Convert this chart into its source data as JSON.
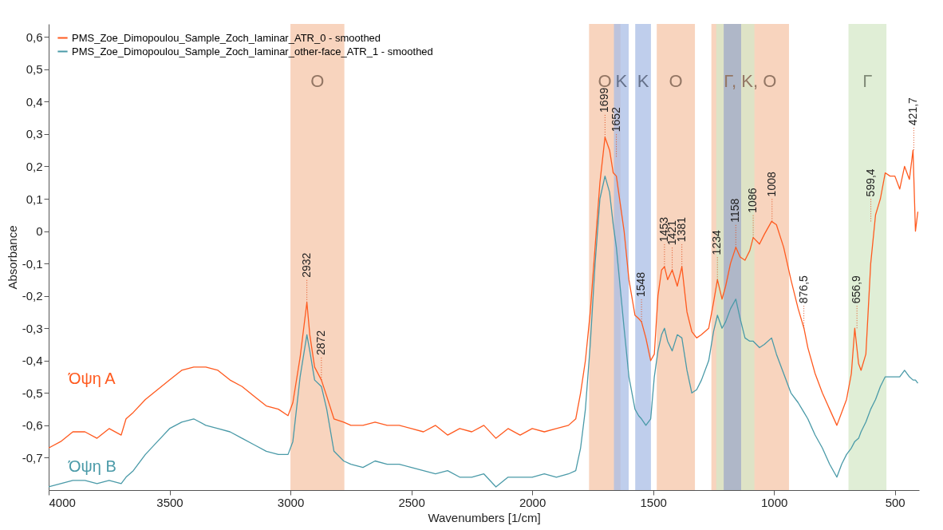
{
  "chart_data": {
    "type": "line",
    "xlabel": "Wavenumbers [1/cm]",
    "ylabel": "Absorbance",
    "xlim": [
      4000,
      400
    ],
    "xticks": [
      4000,
      3500,
      3000,
      2500,
      2000,
      1500,
      1000,
      500
    ],
    "ylim": [
      -0.8,
      0.64
    ],
    "yticks": [
      {
        "value": -0.7,
        "label": "-0,7"
      },
      {
        "value": -0.6,
        "label": "-0,6"
      },
      {
        "value": -0.5,
        "label": "-0,5"
      },
      {
        "value": -0.4,
        "label": "-0,4"
      },
      {
        "value": -0.3,
        "label": "-0,3"
      },
      {
        "value": -0.2,
        "label": "-0,2"
      },
      {
        "value": -0.1,
        "label": "-0,1"
      },
      0,
      {
        "value": 0.1,
        "label": "0,1"
      },
      {
        "value": 0.2,
        "label": "0,2"
      },
      {
        "value": 0.3,
        "label": "0,3"
      },
      {
        "value": 0.4,
        "label": "0,4"
      },
      {
        "value": 0.5,
        "label": "0,5"
      },
      {
        "value": 0.6,
        "label": "0,6"
      }
    ],
    "grid": false,
    "legend": "top left",
    "marker": "none",
    "line_style": "solid",
    "x": [
      4000,
      3950,
      3900,
      3850,
      3800,
      3750,
      3700,
      3680,
      3650,
      3600,
      3550,
      3500,
      3450,
      3400,
      3350,
      3300,
      3250,
      3200,
      3150,
      3100,
      3050,
      3010,
      2990,
      2960,
      2932,
      2920,
      2900,
      2872,
      2850,
      2820,
      2780,
      2750,
      2700,
      2650,
      2600,
      2550,
      2500,
      2450,
      2400,
      2350,
      2300,
      2250,
      2200,
      2150,
      2100,
      2050,
      2000,
      1950,
      1900,
      1850,
      1820,
      1800,
      1780,
      1760,
      1740,
      1720,
      1699,
      1680,
      1665,
      1652,
      1620,
      1600,
      1575,
      1560,
      1548,
      1530,
      1510,
      1495,
      1480,
      1465,
      1453,
      1440,
      1421,
      1400,
      1381,
      1360,
      1340,
      1320,
      1300,
      1270,
      1250,
      1234,
      1215,
      1200,
      1180,
      1158,
      1140,
      1120,
      1100,
      1086,
      1060,
      1040,
      1010,
      990,
      960,
      930,
      900,
      876,
      860,
      830,
      800,
      770,
      740,
      720,
      700,
      680,
      666,
      650,
      640,
      620,
      600,
      580,
      560,
      540,
      520,
      500,
      480,
      460,
      440,
      425,
      415,
      405
    ],
    "series": [
      {
        "name": "PMS_Zoe_Dimopoulou_Sample_Zoch_laminar_ATR_0  -  smoothed",
        "color": "#ff5a1f",
        "values": [
          -0.67,
          -0.65,
          -0.62,
          -0.62,
          -0.64,
          -0.61,
          -0.63,
          -0.58,
          -0.56,
          -0.52,
          -0.49,
          -0.46,
          -0.43,
          -0.42,
          -0.42,
          -0.43,
          -0.46,
          -0.48,
          -0.51,
          -0.54,
          -0.55,
          -0.57,
          -0.53,
          -0.39,
          -0.22,
          -0.32,
          -0.42,
          -0.46,
          -0.51,
          -0.58,
          -0.59,
          -0.6,
          -0.6,
          -0.59,
          -0.6,
          -0.6,
          -0.61,
          -0.62,
          -0.6,
          -0.63,
          -0.61,
          -0.62,
          -0.6,
          -0.64,
          -0.61,
          -0.63,
          -0.61,
          -0.62,
          -0.61,
          -0.6,
          -0.58,
          -0.5,
          -0.4,
          -0.25,
          -0.05,
          0.15,
          0.29,
          0.25,
          0.18,
          0.17,
          0.0,
          -0.15,
          -0.26,
          -0.27,
          -0.28,
          -0.33,
          -0.4,
          -0.38,
          -0.2,
          -0.12,
          -0.11,
          -0.15,
          -0.12,
          -0.17,
          -0.11,
          -0.25,
          -0.31,
          -0.33,
          -0.32,
          -0.3,
          -0.22,
          -0.15,
          -0.21,
          -0.17,
          -0.1,
          -0.05,
          -0.08,
          -0.09,
          -0.06,
          -0.02,
          -0.04,
          -0.01,
          0.03,
          0.02,
          -0.05,
          -0.15,
          -0.24,
          -0.3,
          -0.36,
          -0.44,
          -0.5,
          -0.55,
          -0.6,
          -0.56,
          -0.52,
          -0.44,
          -0.3,
          -0.41,
          -0.43,
          -0.38,
          -0.1,
          0.05,
          0.1,
          0.18,
          0.17,
          0.17,
          0.13,
          0.2,
          0.16,
          0.25,
          0.0,
          0.06
        ]
      },
      {
        "name": "PMS_Zoe_Dimopoulou_Sample_Zoch_laminar_other-face_ATR_1  -  smoothed",
        "color": "#4a9aa8",
        "values": [
          -0.79,
          -0.78,
          -0.77,
          -0.77,
          -0.78,
          -0.77,
          -0.78,
          -0.76,
          -0.74,
          -0.69,
          -0.65,
          -0.61,
          -0.59,
          -0.58,
          -0.6,
          -0.61,
          -0.62,
          -0.64,
          -0.66,
          -0.68,
          -0.69,
          -0.69,
          -0.65,
          -0.45,
          -0.32,
          -0.37,
          -0.46,
          -0.48,
          -0.55,
          -0.68,
          -0.71,
          -0.72,
          -0.73,
          -0.71,
          -0.72,
          -0.72,
          -0.73,
          -0.74,
          -0.75,
          -0.74,
          -0.76,
          -0.76,
          -0.75,
          -0.79,
          -0.76,
          -0.76,
          -0.76,
          -0.75,
          -0.76,
          -0.75,
          -0.74,
          -0.67,
          -0.55,
          -0.35,
          -0.1,
          0.1,
          0.17,
          0.12,
          0.02,
          -0.05,
          -0.3,
          -0.45,
          -0.55,
          -0.57,
          -0.58,
          -0.6,
          -0.58,
          -0.45,
          -0.37,
          -0.32,
          -0.3,
          -0.34,
          -0.37,
          -0.32,
          -0.33,
          -0.43,
          -0.5,
          -0.49,
          -0.46,
          -0.4,
          -0.31,
          -0.26,
          -0.3,
          -0.28,
          -0.24,
          -0.21,
          -0.27,
          -0.33,
          -0.34,
          -0.34,
          -0.36,
          -0.35,
          -0.33,
          -0.38,
          -0.44,
          -0.5,
          -0.53,
          -0.56,
          -0.58,
          -0.63,
          -0.67,
          -0.72,
          -0.76,
          -0.72,
          -0.69,
          -0.67,
          -0.65,
          -0.64,
          -0.62,
          -0.59,
          -0.55,
          -0.52,
          -0.48,
          -0.45,
          -0.45,
          -0.45,
          -0.45,
          -0.43,
          -0.45,
          -0.46,
          -0.46,
          -0.47
        ]
      }
    ],
    "bands": [
      {
        "axis": "x",
        "from": 3000,
        "to": 2777,
        "label": "O",
        "color": "#f5c5a8"
      },
      {
        "axis": "x",
        "from": 1765,
        "to": 1635,
        "label": "O",
        "color": "#f5c5a8"
      },
      {
        "axis": "x",
        "from": 1662,
        "to": 1601,
        "label": "K",
        "color": "#a9bde6"
      },
      {
        "axis": "x",
        "from": 1574,
        "to": 1509,
        "label": "K",
        "color": "#a9bde6"
      },
      {
        "axis": "x",
        "from": 1485,
        "to": 1327,
        "label": "O",
        "color": "#f5c5a8"
      },
      {
        "axis": "x",
        "from": 1259,
        "to": 938,
        "label": "Γ, K, O",
        "color": "#f5c5a8"
      },
      {
        "axis": "x",
        "from": 1239,
        "to": 1081,
        "color": "#d6e8c8"
      },
      {
        "axis": "x",
        "from": 1208,
        "to": 1136,
        "color": "#9fa8c8"
      },
      {
        "axis": "x",
        "from": 692,
        "to": 535,
        "label": "Γ",
        "color": "#d6e8c8"
      }
    ],
    "annotations": [
      {
        "text": "2932",
        "x": 2932,
        "y": -0.22
      },
      {
        "text": "2872",
        "x": 2872,
        "y": -0.46
      },
      {
        "text": "1699",
        "x": 1699,
        "y": 0.29
      },
      {
        "text": "1652",
        "x": 1652,
        "y": 0.23
      },
      {
        "text": "1548",
        "x": 1548,
        "y": -0.28
      },
      {
        "text": "1453",
        "x": 1453,
        "y": -0.11
      },
      {
        "text": "1421",
        "x": 1421,
        "y": -0.12
      },
      {
        "text": "1381",
        "x": 1381,
        "y": -0.11
      },
      {
        "text": "1234",
        "x": 1234,
        "y": -0.15
      },
      {
        "text": "1158",
        "x": 1158,
        "y": -0.05
      },
      {
        "text": "1086",
        "x": 1086,
        "y": -0.02
      },
      {
        "text": "1008",
        "x": 1008,
        "y": 0.03
      },
      {
        "text": "876,5",
        "x": 876.5,
        "y": -0.3
      },
      {
        "text": "656,9",
        "x": 656.9,
        "y": -0.3
      },
      {
        "text": "599,4",
        "x": 599.4,
        "y": 0.03
      },
      {
        "text": "421,7",
        "x": 421.7,
        "y": 0.25
      },
      "Όψη Α",
      "Όψη Β"
    ]
  }
}
